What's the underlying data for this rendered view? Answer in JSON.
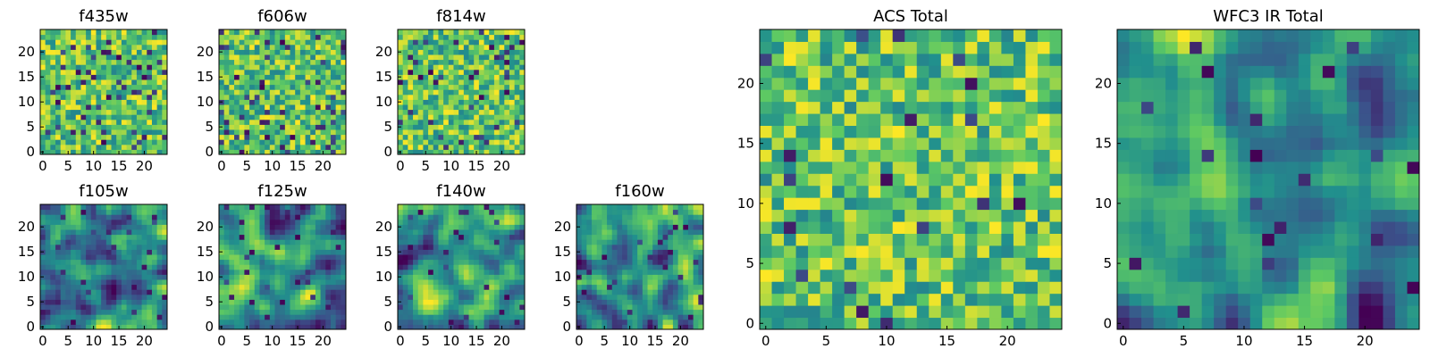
{
  "chart_data": [
    {
      "type": "heatmap",
      "title": "f435w",
      "grid_size": 25,
      "colormap": "viridis",
      "xticks": [
        "0",
        "5",
        "10",
        "15",
        "20"
      ],
      "yticks": [
        "0",
        "5",
        "10",
        "15",
        "20"
      ],
      "xlim": [
        0,
        24
      ],
      "ylim": [
        0,
        24
      ],
      "seed": 11,
      "texture": "noise",
      "low_value_fraction": 0.08
    },
    {
      "type": "heatmap",
      "title": "f606w",
      "grid_size": 25,
      "colormap": "viridis",
      "xticks": [
        "0",
        "5",
        "10",
        "15",
        "20"
      ],
      "yticks": [
        "0",
        "5",
        "10",
        "15",
        "20"
      ],
      "xlim": [
        0,
        24
      ],
      "ylim": [
        0,
        24
      ],
      "seed": 23,
      "texture": "noise",
      "low_value_fraction": 0.09
    },
    {
      "type": "heatmap",
      "title": "f814w",
      "grid_size": 25,
      "colormap": "viridis",
      "xticks": [
        "0",
        "5",
        "10",
        "15",
        "20"
      ],
      "yticks": [
        "0",
        "5",
        "10",
        "15",
        "20"
      ],
      "xlim": [
        0,
        24
      ],
      "ylim": [
        0,
        24
      ],
      "seed": 37,
      "texture": "noise",
      "low_value_fraction": 0.06
    },
    {
      "type": "heatmap",
      "title": "f105w",
      "grid_size": 25,
      "colormap": "viridis",
      "xticks": [
        "0",
        "5",
        "10",
        "15",
        "20"
      ],
      "yticks": [
        "0",
        "5",
        "10",
        "15",
        "20"
      ],
      "xlim": [
        0,
        24
      ],
      "ylim": [
        0,
        24
      ],
      "seed": 41,
      "texture": "smooth",
      "low_value_fraction": 0.04
    },
    {
      "type": "heatmap",
      "title": "f125w",
      "grid_size": 25,
      "colormap": "viridis",
      "xticks": [
        "0",
        "5",
        "10",
        "15",
        "20"
      ],
      "yticks": [
        "0",
        "5",
        "10",
        "15",
        "20"
      ],
      "xlim": [
        0,
        24
      ],
      "ylim": [
        0,
        24
      ],
      "seed": 53,
      "texture": "smooth",
      "low_value_fraction": 0.05
    },
    {
      "type": "heatmap",
      "title": "f140w",
      "grid_size": 25,
      "colormap": "viridis",
      "xticks": [
        "0",
        "5",
        "10",
        "15",
        "20"
      ],
      "yticks": [
        "0",
        "5",
        "10",
        "15",
        "20"
      ],
      "xlim": [
        0,
        24
      ],
      "ylim": [
        0,
        24
      ],
      "seed": 67,
      "texture": "smooth",
      "low_value_fraction": 0.04
    },
    {
      "type": "heatmap",
      "title": "f160w",
      "grid_size": 25,
      "colormap": "viridis",
      "xticks": [
        "0",
        "5",
        "10",
        "15",
        "20"
      ],
      "yticks": [
        "0",
        "5",
        "10",
        "15",
        "20"
      ],
      "xlim": [
        0,
        24
      ],
      "ylim": [
        0,
        24
      ],
      "seed": 79,
      "texture": "smooth",
      "low_value_fraction": 0.04
    },
    {
      "type": "heatmap",
      "title": "ACS Total",
      "grid_size": 25,
      "colormap": "viridis",
      "xticks": [
        "0",
        "5",
        "10",
        "15",
        "20"
      ],
      "yticks": [
        "0",
        "5",
        "10",
        "15",
        "20"
      ],
      "xlim": [
        0,
        24
      ],
      "ylim": [
        0,
        24
      ],
      "seed": 97,
      "texture": "noise",
      "low_value_fraction": 0.03
    },
    {
      "type": "heatmap",
      "title": "WFC3 IR Total",
      "grid_size": 25,
      "colormap": "viridis",
      "xticks": [
        "0",
        "5",
        "10",
        "15",
        "20"
      ],
      "yticks": [
        "0",
        "5",
        "10",
        "15",
        "20"
      ],
      "xlim": [
        0,
        24
      ],
      "ylim": [
        0,
        24
      ],
      "seed": 131,
      "texture": "smooth",
      "low_value_fraction": 0.03
    }
  ],
  "colors": {
    "viridis": [
      "#440154",
      "#3b528b",
      "#21908d",
      "#5dc963",
      "#fde725"
    ],
    "frame": "#000000",
    "background": "#ffffff"
  }
}
